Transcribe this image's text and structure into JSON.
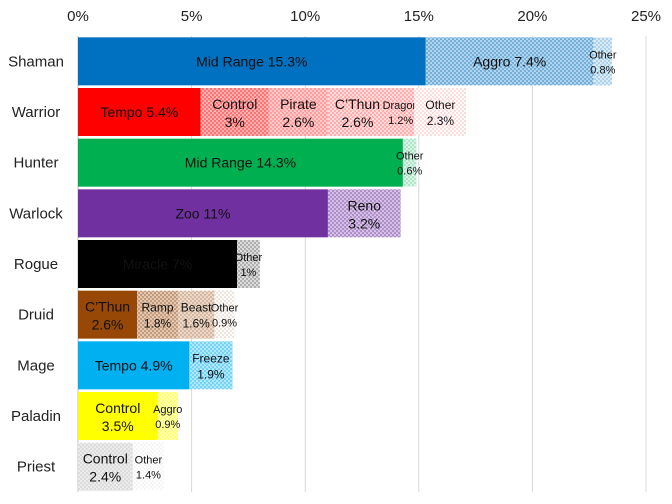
{
  "chart_data": {
    "type": "bar",
    "orientation": "horizontal",
    "stacked": true,
    "xlim": [
      0,
      25
    ],
    "x_ticks": [
      "0%",
      "5%",
      "10%",
      "15%",
      "20%",
      "25%"
    ],
    "x_tick_values": [
      0,
      5,
      10,
      15,
      20,
      25
    ],
    "grid": "vertical",
    "axis_position": "top",
    "legend": "none",
    "title": "",
    "xlabel": "",
    "ylabel": "",
    "categories": [
      "Shaman",
      "Warrior",
      "Hunter",
      "Warlock",
      "Rogue",
      "Druid",
      "Mage",
      "Paladin",
      "Priest"
    ],
    "class_colors": {
      "Shaman": "#0070C0",
      "Warrior": "#FF0000",
      "Hunter": "#00B050",
      "Warlock": "#7030A0",
      "Rogue": "#000000",
      "Druid": "#974806",
      "Mage": "#00B0F0",
      "Paladin": "#FFFF00",
      "Priest": "#BFBFBF"
    },
    "bars": [
      {
        "class": "Shaman",
        "segments": [
          {
            "name": "Mid Range",
            "value": 15.3,
            "line1": "Mid Range 15.3%",
            "line2": "",
            "shade": 0
          },
          {
            "name": "Aggro",
            "value": 7.4,
            "line1": "Aggro 7.4%",
            "line2": "",
            "shade": 1
          },
          {
            "name": "Other",
            "value": 0.8,
            "line1": "Other",
            "line2": "0.8%",
            "shade": 3
          }
        ]
      },
      {
        "class": "Warrior",
        "segments": [
          {
            "name": "Tempo",
            "value": 5.4,
            "line1": "Tempo 5.4%",
            "line2": "",
            "shade": 0
          },
          {
            "name": "Control",
            "value": 3,
            "line1": "Control",
            "line2": "3%",
            "shade": 1
          },
          {
            "name": "Pirate",
            "value": 2.6,
            "line1": "Pirate",
            "line2": "2.6%",
            "shade": 2
          },
          {
            "name": "C'Thun",
            "value": 2.6,
            "line1": "C’Thun",
            "line2": "2.6%",
            "shade": 3
          },
          {
            "name": "Dragon",
            "value": 1.2,
            "line1": "Dragon",
            "line2": "1.2%",
            "shade": 3
          },
          {
            "name": "Other",
            "value": 2.3,
            "line1": "Other",
            "line2": "2.3%",
            "shade": 4
          }
        ]
      },
      {
        "class": "Hunter",
        "segments": [
          {
            "name": "Mid Range",
            "value": 14.3,
            "line1": "Mid Range 14.3%",
            "line2": "",
            "shade": 0
          },
          {
            "name": "Other",
            "value": 0.6,
            "line1": "Other",
            "line2": "0.6%",
            "shade": 3
          }
        ]
      },
      {
        "class": "Warlock",
        "segments": [
          {
            "name": "Zoo",
            "value": 11,
            "line1": "Zoo 11%",
            "line2": "",
            "shade": 0
          },
          {
            "name": "Reno",
            "value": 3.2,
            "line1": "Reno",
            "line2": "3.2%",
            "shade": 1
          }
        ]
      },
      {
        "class": "Rogue",
        "segments": [
          {
            "name": "Miracle",
            "value": 7,
            "line1": "Miracle 7%",
            "line2": "",
            "shade": 0
          },
          {
            "name": "Other",
            "value": 1,
            "line1": "Other",
            "line2": "1%",
            "shade": 3
          }
        ]
      },
      {
        "class": "Druid",
        "segments": [
          {
            "name": "C'Thun",
            "value": 2.6,
            "line1": "C’Thun",
            "line2": "2.6%",
            "shade": 0
          },
          {
            "name": "Ramp",
            "value": 1.8,
            "line1": "Ramp",
            "line2": "1.8%",
            "shade": 1
          },
          {
            "name": "Beast",
            "value": 1.6,
            "line1": "Beast",
            "line2": "1.6%",
            "shade": 2
          },
          {
            "name": "Other",
            "value": 0.9,
            "line1": "Other",
            "line2": "0.9%",
            "shade": 4
          }
        ]
      },
      {
        "class": "Mage",
        "segments": [
          {
            "name": "Tempo",
            "value": 4.9,
            "line1": "Tempo 4.9%",
            "line2": "",
            "shade": 0
          },
          {
            "name": "Freeze",
            "value": 1.9,
            "line1": "Freeze",
            "line2": "1.9%",
            "shade": 1
          }
        ]
      },
      {
        "class": "Paladin",
        "segments": [
          {
            "name": "Control",
            "value": 3.5,
            "line1": "Control",
            "line2": "3.5%",
            "shade": 0
          },
          {
            "name": "Aggro",
            "value": 0.9,
            "line1": "Aggro",
            "line2": "0.9%",
            "shade": 1
          }
        ]
      },
      {
        "class": "Priest",
        "segments": [
          {
            "name": "Control",
            "value": 2.4,
            "line1": "Control",
            "line2": "2.4%",
            "shade": 1
          },
          {
            "name": "Other",
            "value": 1.4,
            "line1": "Other",
            "line2": "1.4%",
            "shade": 4
          }
        ]
      }
    ]
  }
}
